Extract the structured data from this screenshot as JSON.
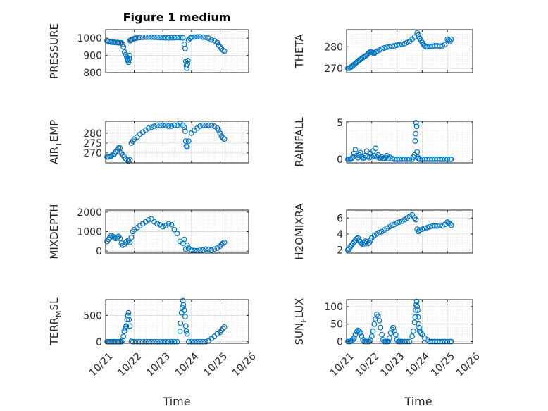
{
  "figure": {
    "title": "Figure 1 medium",
    "marker_color": "#0072BD",
    "axis_color": "#262626",
    "grid": true,
    "minor_grid": true,
    "x_tick_labels": [
      "10/21",
      "10/22",
      "10/23",
      "10/24",
      "10/25",
      "10/26"
    ],
    "x_label": "Time"
  },
  "chart_data": [
    {
      "type": "scatter",
      "name": "pressure",
      "ylabel": "PRESSURE",
      "ylim": [
        800,
        1050
      ],
      "yticks": [
        800,
        900,
        1000
      ],
      "xlim": [
        0,
        5
      ],
      "x": [
        0.05,
        0.1,
        0.15,
        0.2,
        0.25,
        0.3,
        0.35,
        0.4,
        0.45,
        0.5,
        0.55,
        0.6,
        0.62,
        0.66,
        0.7,
        0.74,
        0.76,
        0.78,
        0.8,
        0.82,
        0.84,
        0.86,
        0.88,
        0.9,
        0.95,
        1.0,
        1.05,
        1.1,
        1.2,
        1.3,
        1.4,
        1.5,
        1.6,
        1.7,
        1.8,
        1.9,
        2.0,
        2.1,
        2.2,
        2.3,
        2.4,
        2.5,
        2.6,
        2.7,
        2.75,
        2.78,
        2.8,
        2.82,
        2.84,
        2.86,
        2.88,
        2.9,
        2.95,
        3.0,
        3.1,
        3.2,
        3.3,
        3.4,
        3.5,
        3.6,
        3.7,
        3.8,
        3.9,
        3.95,
        4.0,
        4.05,
        4.1,
        4.15
      ],
      "y": [
        985,
        982,
        980,
        978,
        977,
        976,
        975,
        975,
        974,
        973,
        973,
        965,
        950,
        920,
        905,
        890,
        875,
        870,
        860,
        880,
        900,
        985,
        990,
        992,
        995,
        998,
        1000,
        1002,
        1004,
        1005,
        1006,
        1006,
        1006,
        1005,
        1005,
        1004,
        1003,
        1002,
        1002,
        1002,
        1003,
        1004,
        1003,
        1002,
        965,
        940,
        865,
        840,
        825,
        850,
        870,
        990,
        1000,
        1005,
        1007,
        1008,
        1008,
        1006,
        1005,
        1000,
        990,
        985,
        975,
        960,
        950,
        940,
        930,
        925
      ]
    },
    {
      "type": "scatter",
      "name": "theta",
      "ylabel": "THETA",
      "ylim": [
        268,
        288
      ],
      "yticks": [
        270,
        280
      ],
      "xlim": [
        0,
        5
      ],
      "x": [
        0.05,
        0.1,
        0.15,
        0.2,
        0.25,
        0.3,
        0.35,
        0.4,
        0.45,
        0.5,
        0.55,
        0.6,
        0.65,
        0.7,
        0.75,
        0.8,
        0.85,
        0.9,
        0.95,
        1.0,
        1.05,
        1.1,
        1.15,
        1.2,
        1.3,
        1.4,
        1.5,
        1.6,
        1.7,
        1.8,
        1.9,
        2.0,
        2.1,
        2.2,
        2.3,
        2.4,
        2.5,
        2.6,
        2.7,
        2.8,
        2.85,
        2.9,
        2.95,
        3.0,
        3.05,
        3.1,
        3.15,
        3.2,
        3.3,
        3.4,
        3.5,
        3.6,
        3.7,
        3.8,
        3.9,
        4.0,
        4.05,
        4.1,
        4.15
      ],
      "y": [
        270,
        270,
        270.3,
        270.8,
        271.2,
        271.8,
        272.3,
        272.8,
        273.3,
        273.8,
        274.2,
        274.6,
        275.0,
        275.4,
        275.8,
        276.2,
        276.8,
        277.3,
        277.8,
        277.5,
        277.2,
        277.0,
        277.5,
        278.0,
        278.5,
        279.0,
        279.5,
        279.8,
        280.0,
        280.3,
        280.5,
        280.8,
        281.0,
        281.2,
        281.5,
        282.0,
        282.5,
        283.5,
        284.5,
        286.5,
        285.5,
        284.0,
        283.0,
        282.0,
        281.0,
        280.5,
        280.0,
        280.0,
        280.2,
        280.3,
        280.5,
        280.5,
        280.3,
        280.5,
        281.0,
        283.5,
        283.0,
        282.5,
        283.5
      ]
    },
    {
      "type": "scatter",
      "name": "air_temp",
      "ylabel": "AIR_TEMP",
      "ylim": [
        265,
        286
      ],
      "yticks": [
        270,
        275,
        280
      ],
      "xlim": [
        0,
        5
      ],
      "x": [
        0.05,
        0.1,
        0.15,
        0.2,
        0.25,
        0.3,
        0.35,
        0.4,
        0.45,
        0.5,
        0.55,
        0.6,
        0.65,
        0.7,
        0.75,
        0.8,
        0.85,
        0.9,
        0.95,
        1.0,
        1.1,
        1.2,
        1.3,
        1.4,
        1.5,
        1.6,
        1.7,
        1.8,
        1.9,
        2.0,
        2.1,
        2.2,
        2.3,
        2.4,
        2.5,
        2.6,
        2.7,
        2.75,
        2.78,
        2.8,
        2.82,
        2.85,
        2.9,
        3.0,
        3.1,
        3.2,
        3.3,
        3.4,
        3.5,
        3.6,
        3.7,
        3.8,
        3.9,
        3.95,
        4.0,
        4.05,
        4.1,
        4.15
      ],
      "y": [
        268,
        268,
        268.2,
        268.5,
        269,
        269.5,
        270.5,
        271.5,
        272.5,
        272.5,
        270,
        269,
        268,
        267,
        266.5,
        266,
        266.5,
        275,
        276,
        277,
        278,
        279.5,
        280.5,
        281.5,
        282.5,
        283,
        283.5,
        284,
        284,
        284,
        284,
        283.5,
        283.5,
        284,
        284,
        285,
        284,
        283,
        281,
        276,
        273.5,
        273,
        276,
        280,
        281.5,
        282.5,
        283.5,
        284,
        284,
        284,
        283.8,
        283.5,
        282.5,
        281.5,
        280,
        278.5,
        277.5,
        277
      ]
    },
    {
      "type": "scatter",
      "name": "rainfall",
      "ylabel": "RAINFALL",
      "ylim": [
        -0.5,
        5.2
      ],
      "yticks": [
        0,
        5
      ],
      "xlim": [
        0,
        5
      ],
      "x": [
        0.05,
        0.1,
        0.15,
        0.2,
        0.25,
        0.3,
        0.35,
        0.4,
        0.45,
        0.5,
        0.55,
        0.6,
        0.65,
        0.7,
        0.75,
        0.8,
        0.85,
        0.9,
        0.95,
        1.0,
        1.05,
        1.1,
        1.15,
        1.2,
        1.25,
        1.3,
        1.35,
        1.4,
        1.45,
        1.5,
        1.55,
        1.6,
        1.65,
        1.7,
        1.8,
        1.9,
        2.0,
        2.1,
        2.2,
        2.3,
        2.4,
        2.5,
        2.6,
        2.65,
        2.7,
        2.72,
        2.74,
        2.76,
        2.78,
        2.8,
        2.82,
        2.85,
        2.9,
        3.0,
        3.1,
        3.2,
        3.3,
        3.4,
        3.5,
        3.6,
        3.7,
        3.8,
        3.9,
        4.0,
        4.1,
        4.15
      ],
      "y": [
        0,
        0,
        0,
        0.1,
        0.3,
        0.8,
        1.3,
        0.5,
        0.2,
        0.6,
        0.9,
        0.3,
        0.1,
        0.2,
        0.5,
        1.1,
        0.4,
        0.2,
        0.8,
        0.3,
        1.1,
        0.4,
        1.5,
        0.3,
        0.6,
        0.2,
        0.1,
        0.3,
        0.1,
        0.1,
        0.2,
        0.5,
        0.1,
        0.3,
        0.1,
        0,
        0,
        0,
        0,
        0,
        0,
        0,
        0,
        0.3,
        0.6,
        2.5,
        3.5,
        5.0,
        4.5,
        1.0,
        0.3,
        0.1,
        0,
        0,
        0,
        0,
        0,
        0,
        0,
        0,
        0,
        0,
        0,
        0,
        0,
        0
      ]
    },
    {
      "type": "scatter",
      "name": "mixdepth",
      "ylabel": "MIXDEPTH",
      "ylim": [
        -100,
        2100
      ],
      "yticks": [
        0,
        1000,
        2000
      ],
      "xlim": [
        0,
        5
      ],
      "x": [
        0.05,
        0.1,
        0.15,
        0.2,
        0.25,
        0.3,
        0.35,
        0.4,
        0.45,
        0.5,
        0.55,
        0.6,
        0.65,
        0.7,
        0.75,
        0.8,
        0.85,
        0.9,
        0.95,
        1.0,
        1.1,
        1.2,
        1.3,
        1.4,
        1.5,
        1.6,
        1.7,
        1.8,
        1.9,
        2.0,
        2.1,
        2.2,
        2.3,
        2.4,
        2.5,
        2.6,
        2.7,
        2.75,
        2.8,
        2.85,
        2.9,
        3.0,
        3.1,
        3.2,
        3.3,
        3.4,
        3.5,
        3.6,
        3.7,
        3.8,
        3.9,
        4.0,
        4.05,
        4.1,
        4.15
      ],
      "y": [
        500,
        600,
        700,
        800,
        750,
        700,
        650,
        700,
        750,
        650,
        400,
        300,
        350,
        450,
        500,
        550,
        450,
        700,
        1000,
        1100,
        1200,
        1300,
        1400,
        1500,
        1600,
        1650,
        1500,
        1400,
        1350,
        1250,
        1300,
        1400,
        1350,
        1100,
        900,
        500,
        400,
        600,
        100,
        300,
        150,
        50,
        30,
        20,
        40,
        60,
        100,
        80,
        50,
        100,
        150,
        250,
        350,
        400,
        450
      ]
    },
    {
      "type": "scatter",
      "name": "h2omixra",
      "ylabel": "H2OMIXRA",
      "ylim": [
        1.6,
        7.0
      ],
      "yticks": [
        2,
        4,
        6
      ],
      "xlim": [
        0,
        5
      ],
      "x": [
        0.05,
        0.1,
        0.15,
        0.2,
        0.25,
        0.3,
        0.35,
        0.4,
        0.45,
        0.5,
        0.55,
        0.6,
        0.65,
        0.7,
        0.75,
        0.8,
        0.85,
        0.9,
        0.95,
        1.0,
        1.1,
        1.2,
        1.3,
        1.4,
        1.5,
        1.6,
        1.7,
        1.8,
        1.9,
        2.0,
        2.1,
        2.2,
        2.3,
        2.4,
        2.5,
        2.6,
        2.7,
        2.75,
        2.8,
        2.85,
        2.9,
        3.0,
        3.1,
        3.2,
        3.3,
        3.4,
        3.5,
        3.6,
        3.7,
        3.8,
        3.9,
        4.0,
        4.05,
        4.1,
        4.15
      ],
      "y": [
        2.0,
        2.1,
        2.4,
        2.6,
        2.8,
        3.0,
        3.2,
        3.4,
        3.5,
        3.2,
        3.0,
        2.8,
        2.7,
        2.9,
        3.1,
        3.0,
        2.8,
        2.9,
        3.2,
        3.5,
        3.8,
        4.0,
        4.2,
        4.3,
        4.5,
        4.7,
        4.9,
        5.1,
        5.2,
        5.4,
        5.5,
        5.6,
        5.8,
        6.0,
        6.2,
        6.4,
        6.0,
        5.8,
        4.6,
        4.3,
        4.5,
        4.6,
        4.7,
        4.8,
        4.9,
        5.0,
        5.0,
        5.0,
        5.1,
        5.0,
        5.2,
        5.5,
        5.4,
        5.3,
        5.1
      ]
    },
    {
      "type": "scatter",
      "name": "terr_msl",
      "ylabel": "TERR_MSL",
      "ylim": [
        -30,
        800
      ],
      "yticks": [
        0,
        500
      ],
      "xlim": [
        0,
        5
      ],
      "x": [
        0.05,
        0.1,
        0.15,
        0.2,
        0.25,
        0.3,
        0.35,
        0.4,
        0.45,
        0.5,
        0.55,
        0.6,
        0.62,
        0.65,
        0.68,
        0.7,
        0.72,
        0.75,
        0.78,
        0.8,
        0.82,
        0.85,
        0.9,
        0.95,
        1.0,
        1.1,
        1.2,
        1.3,
        1.4,
        1.5,
        1.6,
        1.7,
        1.8,
        1.9,
        2.0,
        2.1,
        2.2,
        2.3,
        2.4,
        2.5,
        2.6,
        2.62,
        2.65,
        2.68,
        2.7,
        2.72,
        2.75,
        2.78,
        2.8,
        2.82,
        2.85,
        2.9,
        3.0,
        3.1,
        3.2,
        3.3,
        3.4,
        3.5,
        3.6,
        3.7,
        3.8,
        3.9,
        4.0,
        4.05,
        4.1,
        4.15
      ],
      "y": [
        0,
        0,
        0,
        0,
        0,
        0,
        0,
        0,
        0,
        0,
        0,
        30,
        100,
        200,
        250,
        280,
        300,
        420,
        500,
        550,
        420,
        300,
        10,
        0,
        0,
        0,
        0,
        0,
        0,
        0,
        0,
        0,
        0,
        0,
        0,
        0,
        0,
        0,
        0,
        0,
        200,
        350,
        550,
        650,
        780,
        700,
        600,
        480,
        300,
        200,
        150,
        0,
        0,
        0,
        0,
        0,
        0,
        0,
        20,
        60,
        100,
        150,
        180,
        220,
        250,
        280
      ]
    },
    {
      "type": "scatter",
      "name": "sun_flux",
      "ylabel": "SUN_FLUX",
      "ylim": [
        -5,
        120
      ],
      "yticks": [
        0,
        50,
        100
      ],
      "xlim": [
        0,
        5
      ],
      "x": [
        0.05,
        0.1,
        0.15,
        0.2,
        0.25,
        0.3,
        0.35,
        0.4,
        0.45,
        0.5,
        0.55,
        0.6,
        0.65,
        0.7,
        0.75,
        0.8,
        0.85,
        0.9,
        0.95,
        1.0,
        1.05,
        1.1,
        1.15,
        1.2,
        1.25,
        1.3,
        1.35,
        1.4,
        1.45,
        1.5,
        1.55,
        1.6,
        1.65,
        1.7,
        1.75,
        1.8,
        1.85,
        1.9,
        1.95,
        2.0,
        2.05,
        2.1,
        2.15,
        2.2,
        2.3,
        2.4,
        2.5,
        2.6,
        2.65,
        2.7,
        2.72,
        2.74,
        2.76,
        2.78,
        2.8,
        2.82,
        2.84,
        2.86,
        2.88,
        2.9,
        2.95,
        3.0,
        3.1,
        3.2,
        3.3,
        3.4,
        3.5,
        3.6,
        3.7,
        3.8,
        3.9,
        4.0,
        4.1,
        4.15
      ],
      "y": [
        0,
        0,
        0,
        2,
        5,
        10,
        20,
        28,
        32,
        30,
        25,
        15,
        5,
        0,
        0,
        0,
        0,
        0,
        5,
        15,
        30,
        50,
        65,
        78,
        72,
        60,
        40,
        20,
        5,
        0,
        0,
        0,
        0,
        10,
        25,
        35,
        40,
        30,
        20,
        5,
        0,
        0,
        0,
        0,
        0,
        0,
        0,
        15,
        30,
        55,
        70,
        90,
        105,
        115,
        100,
        90,
        70,
        50,
        40,
        30,
        25,
        20,
        10,
        5,
        0,
        0,
        0,
        0,
        0,
        0,
        0,
        0,
        0,
        0
      ]
    }
  ]
}
